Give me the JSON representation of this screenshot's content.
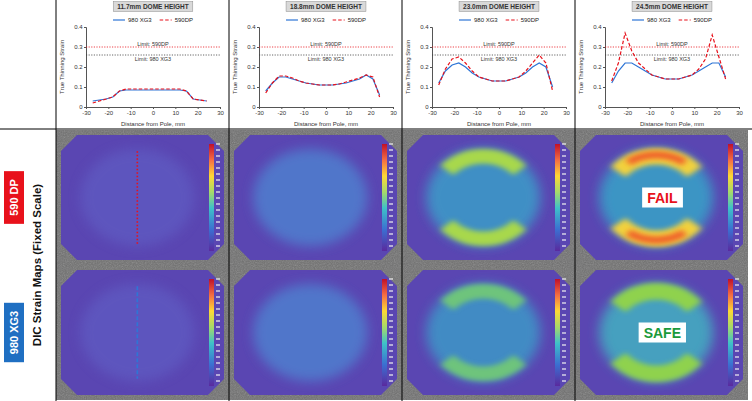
{
  "chart_data": [
    {
      "type": "line",
      "title": "11.7mm DOME HEIGHT",
      "x": [
        -27,
        -24,
        -21,
        -18,
        -15,
        -12,
        -9,
        -6,
        -3,
        0,
        3,
        6,
        9,
        12,
        15,
        18,
        21,
        24
      ],
      "series": [
        {
          "name": "980 XG3",
          "color": "#2e75d6",
          "line_style": "solid",
          "values": [
            0.03,
            0.035,
            0.04,
            0.05,
            0.08,
            0.085,
            0.085,
            0.085,
            0.085,
            0.085,
            0.085,
            0.085,
            0.085,
            0.085,
            0.08,
            0.04,
            0.035,
            0.03
          ]
        },
        {
          "name": "590DP",
          "color": "#e8111b",
          "line_style": "dashed",
          "values": [
            0.02,
            0.03,
            0.04,
            0.05,
            0.08,
            0.09,
            0.09,
            0.09,
            0.09,
            0.09,
            0.09,
            0.09,
            0.09,
            0.09,
            0.08,
            0.04,
            0.035,
            0.03
          ]
        }
      ],
      "limits": [
        {
          "label": "Limit: 590DP",
          "value": 0.3,
          "color": "#e8111b",
          "line_style": "dotted"
        },
        {
          "label": "Limit: 980 XG3",
          "value": 0.26,
          "color": "#404040",
          "line_style": "dotted"
        }
      ],
      "xlim": [
        -30,
        30
      ],
      "xticks": [
        -30,
        -20,
        -10,
        0,
        10,
        20,
        30
      ],
      "ylim": [
        0,
        0.4
      ],
      "yticks": [
        0,
        0.1,
        0.2,
        0.3,
        0.4
      ],
      "xlabel": "Distance from Pole, mm",
      "ylabel": "True Thinning Strain",
      "legend": "top",
      "grid": false
    },
    {
      "type": "line",
      "title": "18.8mm DOME HEIGHT",
      "x": [
        -27,
        -24,
        -21,
        -18,
        -15,
        -12,
        -9,
        -6,
        -3,
        0,
        3,
        6,
        9,
        12,
        15,
        18,
        21,
        24
      ],
      "series": [
        {
          "name": "980 XG3",
          "color": "#2e75d6",
          "line_style": "solid",
          "values": [
            0.08,
            0.12,
            0.15,
            0.15,
            0.14,
            0.13,
            0.12,
            0.115,
            0.11,
            0.11,
            0.11,
            0.115,
            0.12,
            0.13,
            0.14,
            0.16,
            0.14,
            0.06
          ]
        },
        {
          "name": "590DP",
          "color": "#e8111b",
          "line_style": "dashed",
          "values": [
            0.07,
            0.12,
            0.155,
            0.155,
            0.145,
            0.13,
            0.12,
            0.115,
            0.11,
            0.11,
            0.11,
            0.115,
            0.125,
            0.135,
            0.145,
            0.16,
            0.15,
            0.05
          ]
        }
      ],
      "limits": [
        {
          "label": "Limit: 590DP",
          "value": 0.3,
          "color": "#e8111b",
          "line_style": "dotted"
        },
        {
          "label": "Limit: 980 XG3",
          "value": 0.26,
          "color": "#404040",
          "line_style": "dotted"
        }
      ],
      "xlim": [
        -30,
        30
      ],
      "xticks": [
        -30,
        -20,
        -10,
        0,
        10,
        20,
        30
      ],
      "ylim": [
        0,
        0.4
      ],
      "yticks": [
        0,
        0.1,
        0.2,
        0.3,
        0.4
      ],
      "xlabel": "Distance from Pole, mm",
      "ylabel": "True Thinning Strain",
      "legend": "top",
      "grid": false
    },
    {
      "type": "line",
      "title": "23.0mm DOME HEIGHT",
      "x": [
        -27,
        -24,
        -21,
        -18,
        -15,
        -12,
        -9,
        -6,
        -3,
        0,
        3,
        6,
        9,
        12,
        15,
        18,
        21,
        24
      ],
      "series": [
        {
          "name": "980 XG3",
          "color": "#2e75d6",
          "line_style": "solid",
          "values": [
            0.12,
            0.18,
            0.21,
            0.22,
            0.2,
            0.17,
            0.15,
            0.14,
            0.13,
            0.13,
            0.13,
            0.14,
            0.15,
            0.17,
            0.2,
            0.22,
            0.2,
            0.1
          ]
        },
        {
          "name": "590DP",
          "color": "#e8111b",
          "line_style": "dashed",
          "values": [
            0.11,
            0.19,
            0.24,
            0.25,
            0.22,
            0.18,
            0.15,
            0.14,
            0.13,
            0.13,
            0.13,
            0.14,
            0.15,
            0.18,
            0.22,
            0.26,
            0.22,
            0.08
          ]
        }
      ],
      "limits": [
        {
          "label": "Limit: 590DP",
          "value": 0.3,
          "color": "#e8111b",
          "line_style": "dotted"
        },
        {
          "label": "Limit: 980 XG3",
          "value": 0.26,
          "color": "#404040",
          "line_style": "dotted"
        }
      ],
      "xlim": [
        -30,
        30
      ],
      "xticks": [
        -30,
        -20,
        -10,
        0,
        10,
        20,
        30
      ],
      "ylim": [
        0,
        0.4
      ],
      "yticks": [
        0,
        0.1,
        0.2,
        0.3,
        0.4
      ],
      "xlabel": "Distance from Pole, mm",
      "ylabel": "True Thinning Strain",
      "legend": "top",
      "grid": false
    },
    {
      "type": "line",
      "title": "24.5mm DOME HEIGHT",
      "x": [
        -27,
        -24,
        -21,
        -18,
        -15,
        -12,
        -9,
        -6,
        -3,
        0,
        3,
        6,
        9,
        12,
        15,
        18,
        21,
        24
      ],
      "series": [
        {
          "name": "980 XG3",
          "color": "#2e75d6",
          "line_style": "solid",
          "values": [
            0.12,
            0.18,
            0.22,
            0.22,
            0.2,
            0.18,
            0.16,
            0.15,
            0.14,
            0.14,
            0.14,
            0.15,
            0.16,
            0.18,
            0.2,
            0.22,
            0.22,
            0.15
          ]
        },
        {
          "name": "590DP",
          "color": "#e8111b",
          "line_style": "dashed",
          "values": [
            0.13,
            0.22,
            0.37,
            0.28,
            0.22,
            0.19,
            0.16,
            0.15,
            0.14,
            0.14,
            0.14,
            0.15,
            0.16,
            0.19,
            0.24,
            0.36,
            0.25,
            0.14
          ]
        }
      ],
      "limits": [
        {
          "label": "Limit: 590DP",
          "value": 0.3,
          "color": "#e8111b",
          "line_style": "dotted"
        },
        {
          "label": "Limit: 980 XG3",
          "value": 0.26,
          "color": "#404040",
          "line_style": "dotted"
        }
      ],
      "xlim": [
        -30,
        30
      ],
      "xticks": [
        -30,
        -20,
        -10,
        0,
        10,
        20,
        30
      ],
      "ylim": [
        0,
        0.4
      ],
      "yticks": [
        0,
        0.1,
        0.2,
        0.3,
        0.4
      ],
      "xlabel": "Distance from Pole, mm",
      "ylabel": "True Thinning Strain",
      "legend": "top",
      "grid": false
    }
  ],
  "strain_maps": {
    "title": "DIC Strain Maps (Fixed Scale)",
    "rows": [
      {
        "label": "590 DP",
        "color": "#e8111b",
        "result": "FAIL",
        "result_color": "#e8111b"
      },
      {
        "label": "980 XG3",
        "color": "#1f6fc2",
        "result": "SAFE",
        "result_color": "#1a9a3a"
      }
    ]
  }
}
